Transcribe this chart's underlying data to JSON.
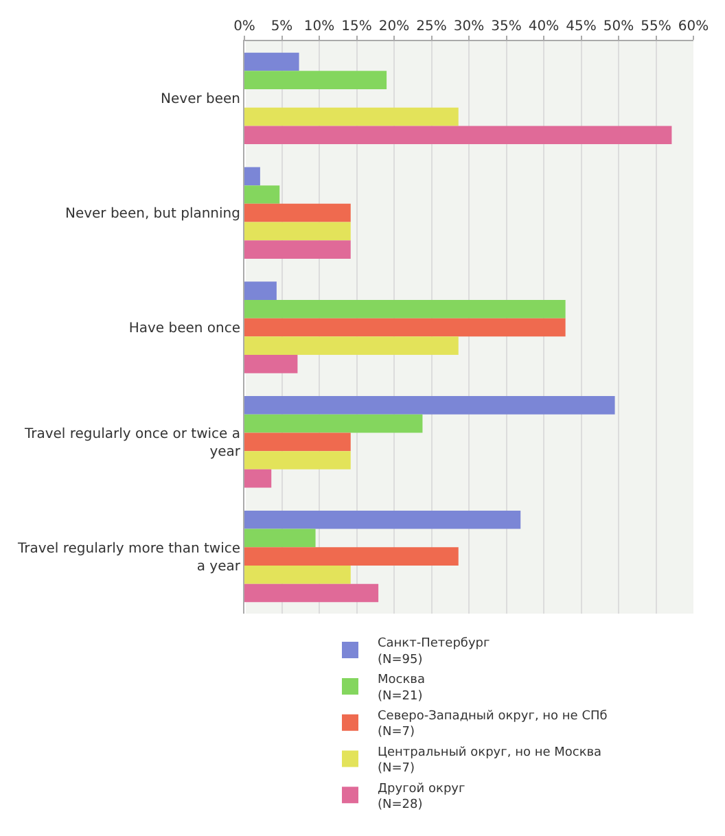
{
  "chart_data": {
    "type": "bar",
    "orientation": "horizontal",
    "categories": [
      "Never been",
      "Never been, but planning",
      "Have been once",
      "Travel regularly once or twice a year",
      "Travel regularly more than twice a year"
    ],
    "series": [
      {
        "name": "Санкт-Петербург\n(N=95)",
        "color": "#7b86d6",
        "values": [
          7.3,
          2.1,
          4.3,
          49.5,
          36.9
        ]
      },
      {
        "name": "Москва\n(N=21)",
        "color": "#84d65e",
        "values": [
          19.0,
          4.7,
          42.9,
          23.8,
          9.5
        ]
      },
      {
        "name": "Северо-Западный округ, но не СПб\n(N=7)",
        "color": "#ef6a4f",
        "values": [
          0,
          14.2,
          42.9,
          14.2,
          28.6
        ]
      },
      {
        "name": "Центральный округ, но не Москва\n(N=7)",
        "color": "#e3e35a",
        "values": [
          28.6,
          14.2,
          28.6,
          14.2,
          14.2
        ]
      },
      {
        "name": "Другой округ\n(N=28)",
        "color": "#e06a98",
        "values": [
          57.1,
          14.2,
          7.1,
          3.6,
          17.9
        ]
      }
    ],
    "xlim": [
      0,
      60
    ],
    "xticks": [
      {
        "value": 0,
        "label": "0%"
      },
      {
        "value": 5,
        "label": "5%"
      },
      {
        "value": 10,
        "label": "10%"
      },
      {
        "value": 15,
        "label": "15%"
      },
      {
        "value": 20,
        "label": "20%"
      },
      {
        "value": 25,
        "label": "25%"
      },
      {
        "value": 30,
        "label": "30%"
      },
      {
        "value": 35,
        "label": "35%"
      },
      {
        "value": 40,
        "label": "40%"
      },
      {
        "value": 45,
        "label": "45%"
      },
      {
        "value": 50,
        "label": "50%"
      },
      {
        "value": 55,
        "label": "55%"
      },
      {
        "value": 60,
        "label": "60%"
      }
    ],
    "grid": "x",
    "legend": "bottom"
  }
}
